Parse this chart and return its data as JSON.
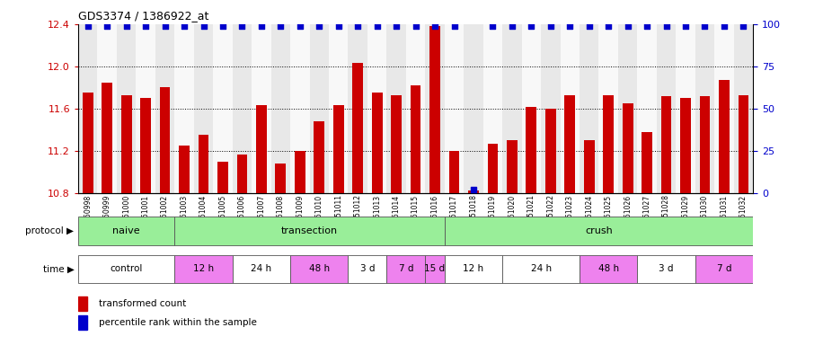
{
  "title": "GDS3374 / 1386922_at",
  "samples": [
    "GSM250998",
    "GSM250999",
    "GSM251000",
    "GSM251001",
    "GSM251002",
    "GSM251003",
    "GSM251004",
    "GSM251005",
    "GSM251006",
    "GSM251007",
    "GSM251008",
    "GSM251009",
    "GSM251010",
    "GSM251011",
    "GSM251012",
    "GSM251013",
    "GSM251014",
    "GSM251015",
    "GSM251016",
    "GSM251017",
    "GSM251018",
    "GSM251019",
    "GSM251020",
    "GSM251021",
    "GSM251022",
    "GSM251023",
    "GSM251024",
    "GSM251025",
    "GSM251026",
    "GSM251027",
    "GSM251028",
    "GSM251029",
    "GSM251030",
    "GSM251031",
    "GSM251032"
  ],
  "bar_values": [
    11.75,
    11.85,
    11.73,
    11.7,
    11.8,
    11.25,
    11.35,
    11.1,
    11.17,
    11.63,
    11.08,
    11.2,
    11.48,
    11.63,
    12.03,
    11.75,
    11.73,
    11.82,
    12.38,
    11.2,
    10.83,
    11.27,
    11.3,
    11.62,
    11.6,
    11.73,
    11.3,
    11.73,
    11.65,
    11.38,
    11.72,
    11.7,
    11.72,
    11.87,
    11.73
  ],
  "percentile_values": [
    99,
    99,
    99,
    99,
    99,
    99,
    99,
    99,
    99,
    99,
    99,
    99,
    99,
    99,
    99,
    99,
    99,
    99,
    99,
    99,
    2,
    99,
    99,
    99,
    99,
    99,
    99,
    99,
    99,
    99,
    99,
    99,
    99,
    99,
    99
  ],
  "ylim_left": [
    10.8,
    12.4
  ],
  "ylim_right": [
    0,
    100
  ],
  "yticks_left": [
    10.8,
    11.2,
    11.6,
    12.0,
    12.4
  ],
  "yticks_right": [
    0,
    25,
    50,
    75,
    100
  ],
  "bar_color": "#cc0000",
  "dot_color": "#0000cc",
  "bg_color": "#ffffff",
  "grid_lines": [
    11.2,
    11.6,
    12.0
  ],
  "prot_groups": [
    {
      "label": "naive",
      "start": 0,
      "end": 5,
      "color": "#99ee99"
    },
    {
      "label": "transection",
      "start": 5,
      "end": 19,
      "color": "#99ee99"
    },
    {
      "label": "crush",
      "start": 19,
      "end": 35,
      "color": "#99ee99"
    }
  ],
  "time_groups": [
    {
      "label": "control",
      "start": 0,
      "end": 5,
      "color": "#ffffff"
    },
    {
      "label": "12 h",
      "start": 5,
      "end": 8,
      "color": "#ee82ee"
    },
    {
      "label": "24 h",
      "start": 8,
      "end": 11,
      "color": "#ffffff"
    },
    {
      "label": "48 h",
      "start": 11,
      "end": 14,
      "color": "#ee82ee"
    },
    {
      "label": "3 d",
      "start": 14,
      "end": 16,
      "color": "#ffffff"
    },
    {
      "label": "7 d",
      "start": 16,
      "end": 18,
      "color": "#ee82ee"
    },
    {
      "label": "15 d",
      "start": 18,
      "end": 19,
      "color": "#ee82ee"
    },
    {
      "label": "12 h",
      "start": 19,
      "end": 22,
      "color": "#ffffff"
    },
    {
      "label": "24 h",
      "start": 22,
      "end": 26,
      "color": "#ffffff"
    },
    {
      "label": "48 h",
      "start": 26,
      "end": 29,
      "color": "#ee82ee"
    },
    {
      "label": "3 d",
      "start": 29,
      "end": 32,
      "color": "#ffffff"
    },
    {
      "label": "7 d",
      "start": 32,
      "end": 35,
      "color": "#ee82ee"
    }
  ]
}
